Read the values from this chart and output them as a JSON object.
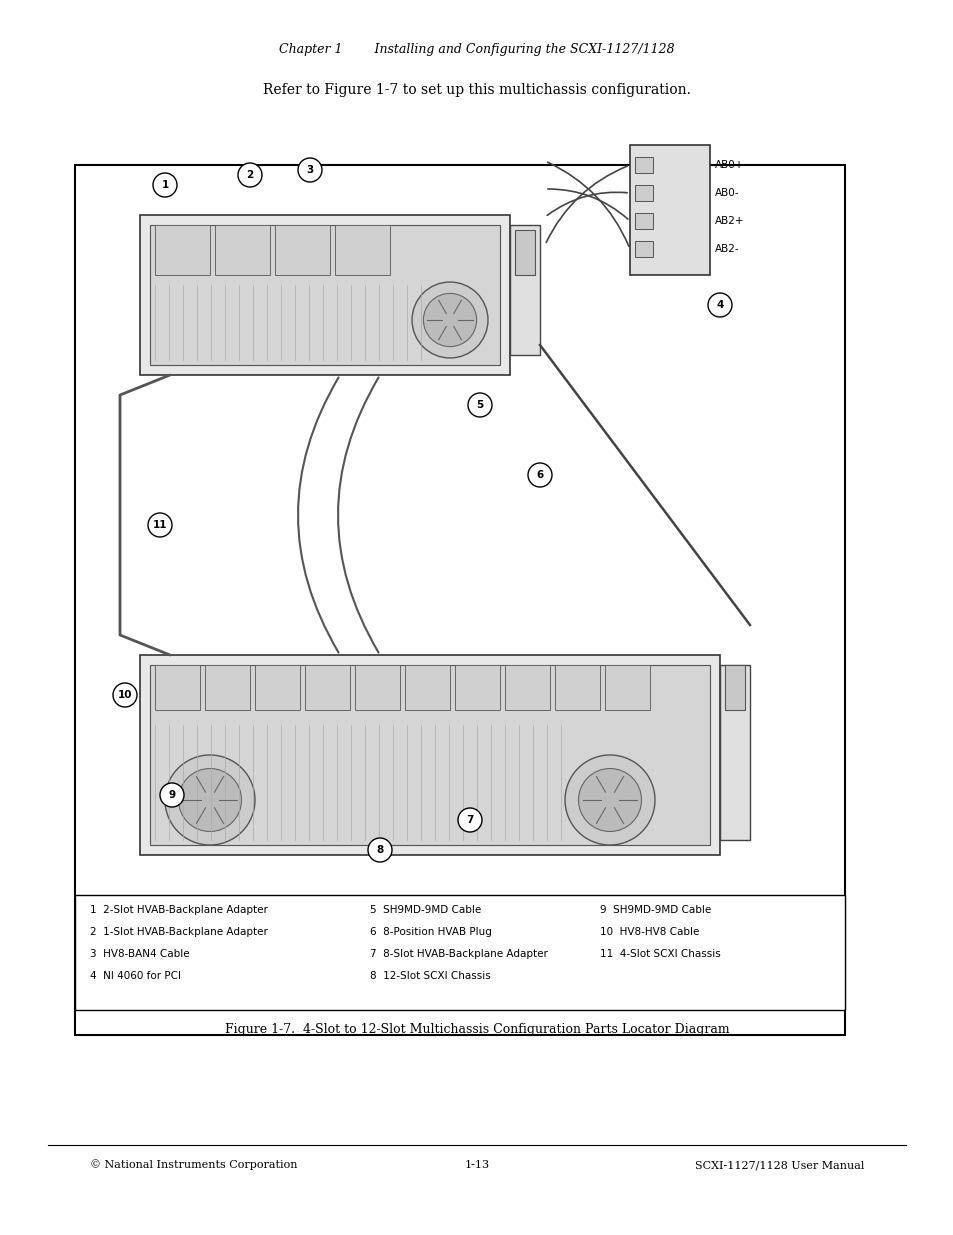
{
  "page_header_left": "Chapter 1",
  "page_header_right": "Installing and Configuring the SCXI-1127/1128",
  "intro_text": "Refer to Figure 1-7 to set up this multichassis configuration.",
  "figure_caption": "Figure 1-7.  4-Slot to 12-Slot Multichassis Configuration Parts Locator Diagram",
  "legend_items": [
    {
      "num": "1",
      "text": "2-Slot HVAB-Backplane Adapter"
    },
    {
      "num": "2",
      "text": "1-Slot HVAB-Backplane Adapter"
    },
    {
      "num": "3",
      "text": "HV8-BAN4 Cable"
    },
    {
      "num": "4",
      "text": "NI 4060 for PCI"
    },
    {
      "num": "5",
      "text": "SH9MD-9MD Cable"
    },
    {
      "num": "6",
      "text": "8-Position HVAB Plug"
    },
    {
      "num": "7",
      "text": "8-Slot HVAB-Backplane Adapter"
    },
    {
      "num": "8",
      "text": "12-Slot SCXI Chassis"
    },
    {
      "num": "9",
      "text": "SH9MD-9MD Cable"
    },
    {
      "num": "10",
      "text": "HV8-HV8 Cable"
    },
    {
      "num": "11",
      "text": "4-Slot SCXI Chassis"
    }
  ],
  "footer_left": "© National Instruments Corporation",
  "footer_center": "1-13",
  "footer_right": "SCXI-1127/1128 User Manual",
  "bg_color": "#ffffff",
  "text_color": "#000000",
  "diagram_border_color": "#000000",
  "label_color": "#000000"
}
